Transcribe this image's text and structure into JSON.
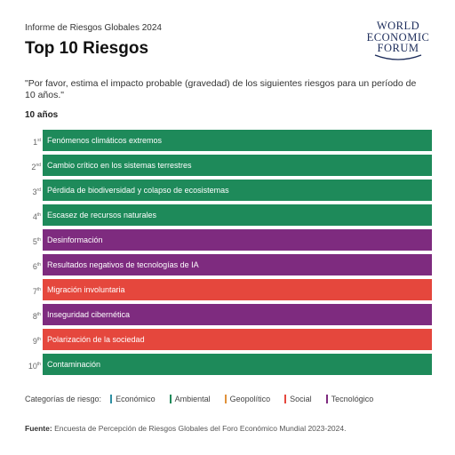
{
  "header": {
    "report_label": "Informe de Riesgos Globales 2024",
    "title": "Top 10 Riesgos",
    "logo": [
      "WORLD",
      "ECONOMIC",
      "FORUM"
    ]
  },
  "question": "\"Por favor, estima el impacto probable (gravedad) de los siguientes riesgos para un período de 10 años.\"",
  "horizon": "10 años",
  "risks": [
    {
      "rank": "1",
      "suffix": "st",
      "label": "Fenómenos climáticos extremos",
      "category": "Ambiental"
    },
    {
      "rank": "2",
      "suffix": "nd",
      "label": "Cambio crítico en los sistemas terrestres",
      "category": "Ambiental"
    },
    {
      "rank": "3",
      "suffix": "rd",
      "label": "Pérdida de biodiversidad y colapso de ecosistemas",
      "category": "Ambiental"
    },
    {
      "rank": "4",
      "suffix": "th",
      "label": "Escasez de recursos naturales",
      "category": "Ambiental"
    },
    {
      "rank": "5",
      "suffix": "th",
      "label": "Desinformación",
      "category": "Tecnológico"
    },
    {
      "rank": "6",
      "suffix": "th",
      "label": "Resultados negativos de tecnologías de IA",
      "category": "Tecnológico"
    },
    {
      "rank": "7",
      "suffix": "th",
      "label": "Migración involuntaria",
      "category": "Social"
    },
    {
      "rank": "8",
      "suffix": "th",
      "label": "Inseguridad cibernética",
      "category": "Tecnológico"
    },
    {
      "rank": "9",
      "suffix": "th",
      "label": "Polarización de la sociedad",
      "category": "Social"
    },
    {
      "rank": "10",
      "suffix": "th",
      "label": "Contaminación",
      "category": "Ambiental"
    }
  ],
  "legend": {
    "title": "Categorías de riesgo:",
    "items": [
      {
        "name": "Económico",
        "color": "#2e8fa3"
      },
      {
        "name": "Ambiental",
        "color": "#1e8a5a"
      },
      {
        "name": "Geopolítico",
        "color": "#e0913a"
      },
      {
        "name": "Social",
        "color": "#e5473d"
      },
      {
        "name": "Tecnológico",
        "color": "#7e2b7f"
      }
    ]
  },
  "source": {
    "label": "Fuente:",
    "text": "Encuesta de Percepción de Riesgos Globales del Foro Económico Mundial 2023-2024."
  }
}
